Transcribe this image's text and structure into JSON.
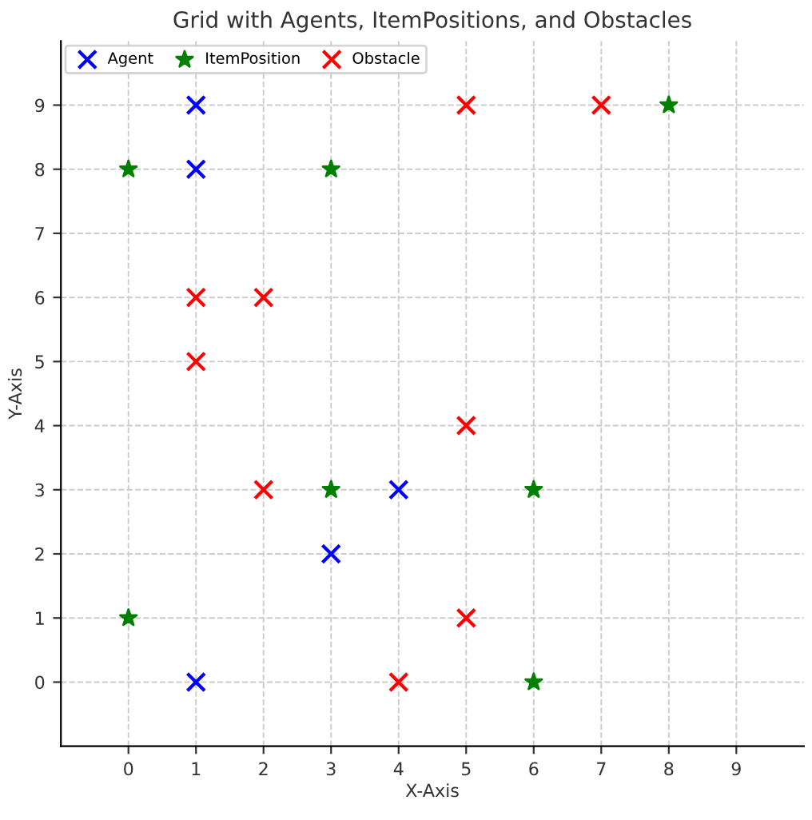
{
  "chart_data": {
    "type": "scatter",
    "title": "Grid with Agents, ItemPositions, and Obstacles",
    "xlabel": "X-Axis",
    "ylabel": "Y-Axis",
    "xlim": [
      -1,
      10
    ],
    "ylim": [
      -1,
      10
    ],
    "xticks": [
      0,
      1,
      2,
      3,
      4,
      5,
      6,
      7,
      8,
      9
    ],
    "yticks": [
      0,
      1,
      2,
      3,
      4,
      5,
      6,
      7,
      8,
      9
    ],
    "grid": true,
    "legend": "top left",
    "series": [
      {
        "name": "Agent",
        "color": "#0000ff",
        "marker": "cross",
        "x": [
          1,
          1,
          4,
          3,
          1
        ],
        "values": [
          9,
          8,
          3,
          2,
          0
        ]
      },
      {
        "name": "ItemPosition",
        "color": "#008000",
        "marker": "star",
        "x": [
          0,
          3,
          8,
          0,
          3,
          6,
          6
        ],
        "values": [
          8,
          8,
          9,
          1,
          3,
          3,
          0
        ]
      },
      {
        "name": "Obstacle",
        "color": "#ff0000",
        "marker": "cross",
        "x": [
          5,
          7,
          1,
          2,
          1,
          5,
          2,
          5,
          4
        ],
        "values": [
          9,
          9,
          6,
          6,
          5,
          4,
          3,
          1,
          0
        ]
      }
    ]
  }
}
